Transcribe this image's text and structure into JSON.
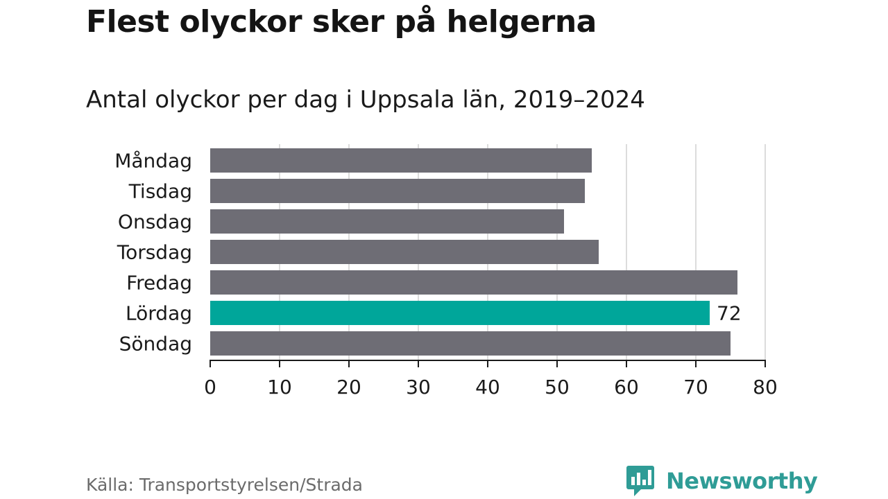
{
  "header": {
    "title": "Flest olyckor sker på helgerna",
    "subtitle": "Antal olyckor per dag i Uppsala län, 2019–2024"
  },
  "footer": {
    "source": "Källa: Transportstyrelsen/Strada",
    "brand": "Newsworthy",
    "brand_icon": "bar-chart-speech-bubble-icon",
    "brand_color": "#2f9c96"
  },
  "chart_data": {
    "type": "bar",
    "orientation": "horizontal",
    "categories": [
      "Måndag",
      "Tisdag",
      "Onsdag",
      "Torsdag",
      "Fredag",
      "Lördag",
      "Söndag"
    ],
    "values": [
      55,
      54,
      51,
      56,
      76,
      72,
      75
    ],
    "highlight_index": 5,
    "highlight_label": "72",
    "xlim": [
      0,
      80
    ],
    "xticks": [
      0,
      10,
      20,
      30,
      40,
      50,
      60,
      70,
      80
    ],
    "grid": true,
    "colors": {
      "bar": "#6e6d75",
      "highlight": "#00a69a",
      "grid": "#dcdcdc",
      "axis": "#1a1a1a"
    }
  }
}
